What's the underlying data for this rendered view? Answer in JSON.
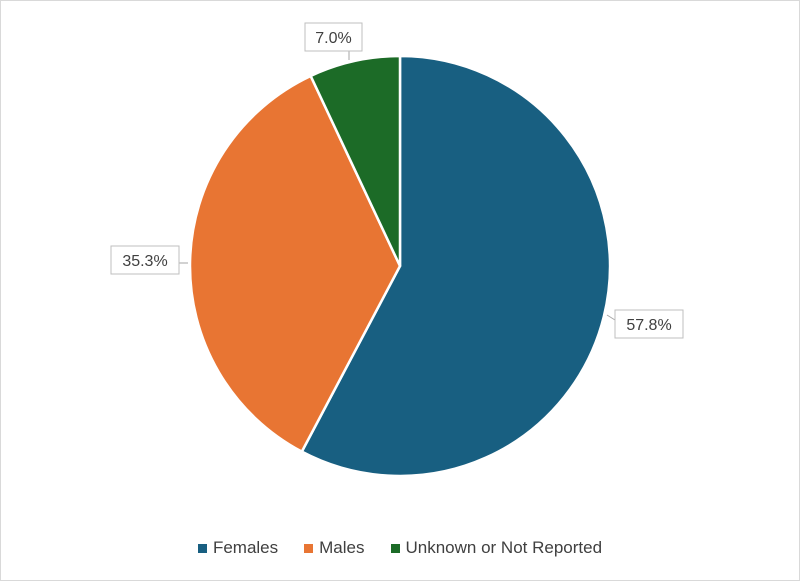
{
  "chart_data": {
    "type": "pie",
    "categories": [
      "Females",
      "Males",
      "Unknown or Not Reported"
    ],
    "values": [
      57.8,
      35.3,
      7.0
    ],
    "data_labels": [
      "57.8%",
      "35.3%",
      "7.0%"
    ],
    "colors": [
      "#185f81",
      "#e87533",
      "#1c6b27"
    ],
    "start_angle_deg": 0,
    "direction": "clockwise",
    "legend_position": "bottom"
  }
}
